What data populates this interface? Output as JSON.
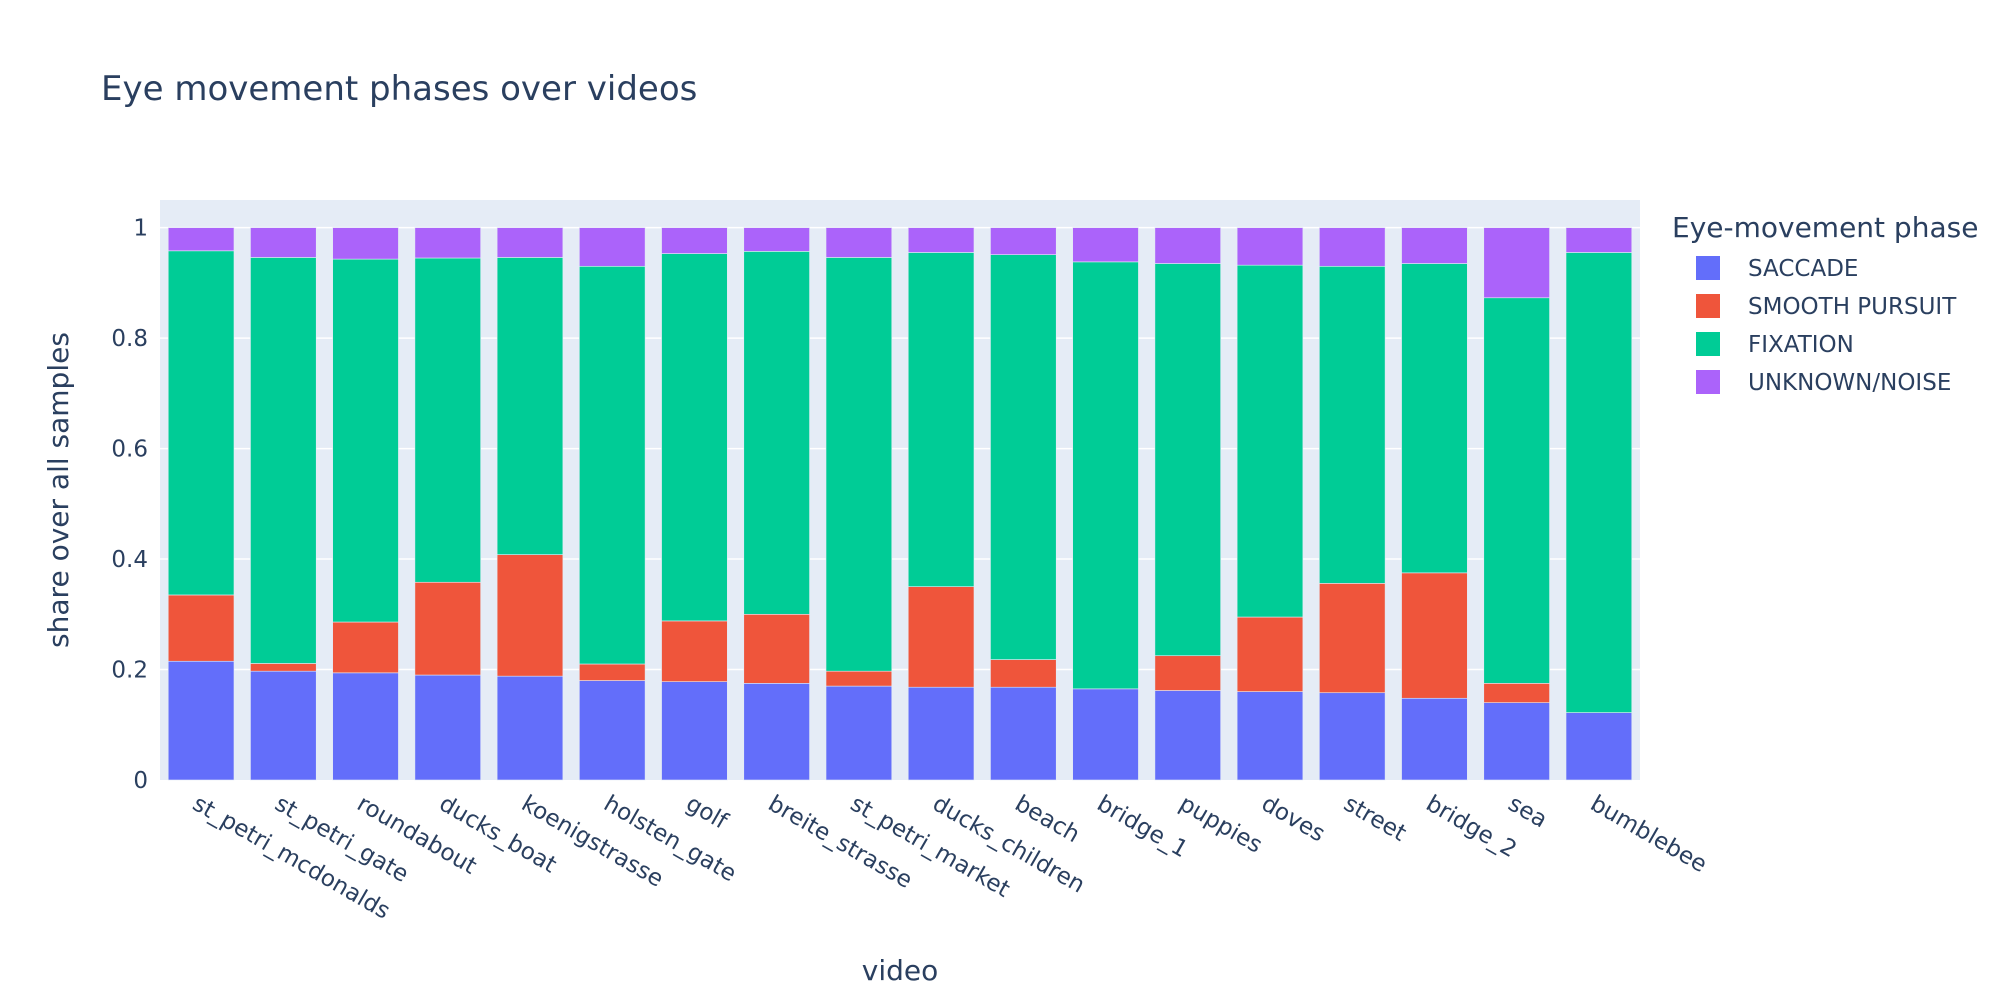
{
  "chart_data": {
    "type": "bar",
    "stacked": true,
    "title": "Eye movement phases over videos",
    "xlabel": "video",
    "ylabel": "share over all samples",
    "ylim": [
      0,
      1.05
    ],
    "yticks": [
      0,
      0.2,
      0.4,
      0.6,
      0.8,
      1
    ],
    "ytick_labels": [
      "0",
      "0.2",
      "0.4",
      "0.6",
      "0.8",
      "1"
    ],
    "grid": true,
    "legend": {
      "title": "Eye-movement phase",
      "position": "right"
    },
    "categories": [
      "st_petri_mcdonalds",
      "st_petri_gate",
      "roundabout",
      "ducks_boat",
      "koenigstrasse",
      "holsten_gate",
      "golf",
      "breite_strasse",
      "st_petri_market",
      "ducks_children",
      "beach",
      "bridge_1",
      "puppies",
      "doves",
      "street",
      "bridge_2",
      "sea",
      "bumblebee"
    ],
    "series": [
      {
        "name": "SACCADE",
        "color": "#636efa",
        "values": [
          0.215,
          0.197,
          0.194,
          0.19,
          0.188,
          0.18,
          0.178,
          0.175,
          0.17,
          0.168,
          0.168,
          0.165,
          0.162,
          0.16,
          0.158,
          0.148,
          0.14,
          0.122
        ]
      },
      {
        "name": "SMOOTH PURSUIT",
        "color": "#ef553b",
        "values": [
          0.12,
          0.014,
          0.092,
          0.168,
          0.22,
          0.03,
          0.11,
          0.125,
          0.027,
          0.182,
          0.05,
          0.0,
          0.063,
          0.135,
          0.198,
          0.227,
          0.035,
          0.0
        ]
      },
      {
        "name": "FIXATION",
        "color": "#00cc96",
        "values": [
          0.623,
          0.735,
          0.657,
          0.587,
          0.538,
          0.72,
          0.665,
          0.657,
          0.749,
          0.605,
          0.733,
          0.773,
          0.71,
          0.637,
          0.574,
          0.56,
          0.698,
          0.833
        ]
      },
      {
        "name": "UNKNOWN/NOISE",
        "color": "#ab63fa",
        "values": [
          0.042,
          0.054,
          0.057,
          0.055,
          0.054,
          0.07,
          0.047,
          0.043,
          0.054,
          0.045,
          0.049,
          0.062,
          0.065,
          0.068,
          0.07,
          0.065,
          0.127,
          0.045
        ]
      }
    ]
  }
}
